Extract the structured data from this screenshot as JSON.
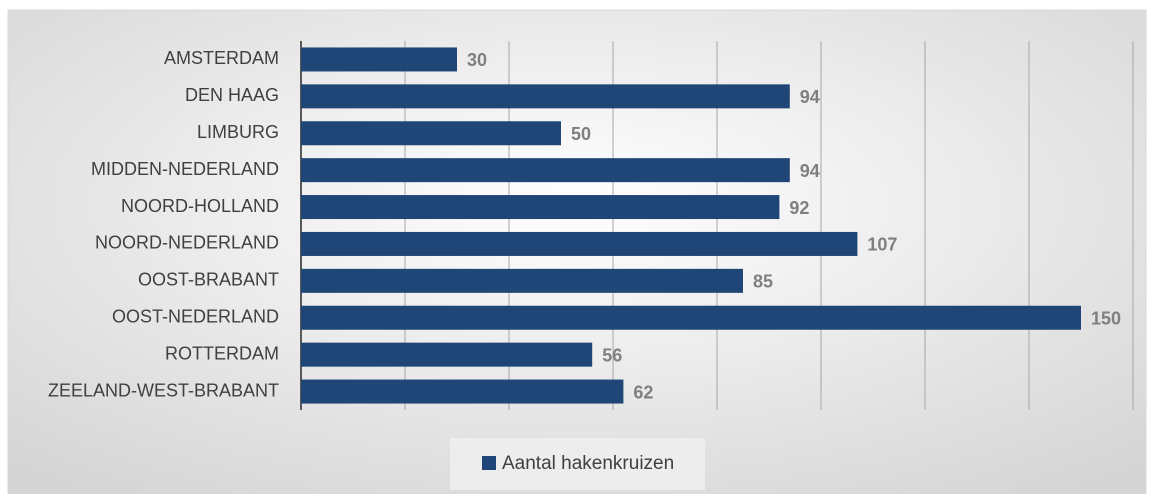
{
  "chart_data": {
    "type": "barh",
    "categories": [
      "AMSTERDAM",
      "DEN HAAG",
      "LIMBURG",
      "MIDDEN-NEDERLAND",
      "NOORD-HOLLAND",
      "NOORD-NEDERLAND",
      "OOST-BRABANT",
      "OOST-NEDERLAND",
      "ROTTERDAM",
      "ZEELAND-WEST-BRABANT"
    ],
    "series": [
      {
        "name": "Aantal hakenkruizen",
        "color": "#1f4676",
        "values": [
          30,
          94,
          50,
          94,
          92,
          107,
          85,
          150,
          56,
          62
        ]
      }
    ],
    "xlim": [
      0,
      160
    ],
    "xticks": [
      0,
      20,
      40,
      60,
      80,
      100,
      120,
      140,
      160
    ],
    "grid": true,
    "legend": "bottom"
  }
}
